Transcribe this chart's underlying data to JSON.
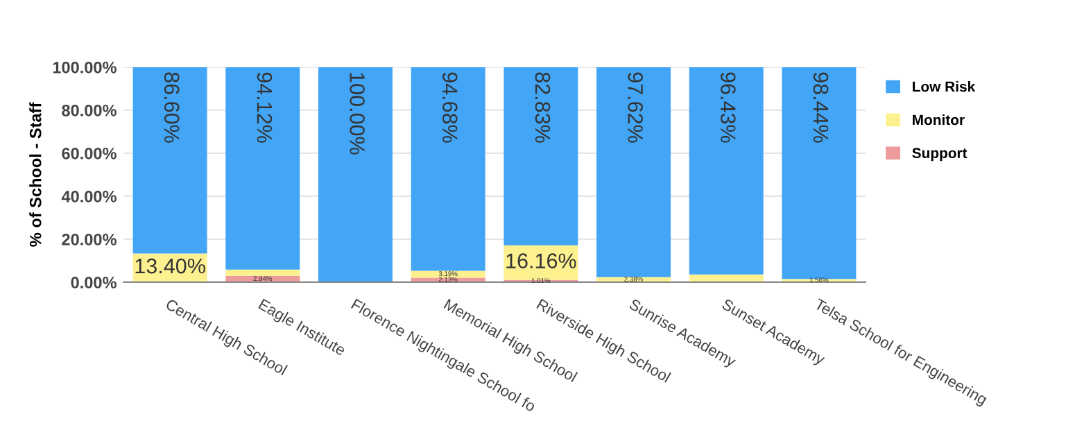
{
  "chart_data": {
    "type": "bar",
    "stacked": true,
    "ylabel": "% of School - Staff",
    "categories": [
      "Central High School",
      "Eagle Institute",
      "Florence Nightingale School fo",
      "Memorial High School",
      "Riverside High School",
      "Sunrise Academy",
      "Sunset Academy",
      "Telsa School for Engineering"
    ],
    "series": [
      {
        "name": "Support",
        "color": "#ec9a9a",
        "values": [
          0,
          2.94,
          0,
          2.13,
          1.01,
          0,
          0,
          0
        ],
        "value_labels": [
          null,
          "2.94%",
          null,
          "2.13%",
          "1.01%",
          null,
          null,
          null
        ]
      },
      {
        "name": "Monitor",
        "color": "#fdf08f",
        "values": [
          13.4,
          2.9,
          0,
          3.19,
          16.16,
          2.38,
          3.6,
          1.56
        ],
        "value_labels": [
          "13.40%",
          null,
          null,
          "3.19%",
          "16.16%",
          "2.38%",
          null,
          "1.56%"
        ]
      },
      {
        "name": "Low Risk",
        "color": "#42a5f5",
        "values": [
          86.6,
          94.12,
          100.0,
          94.68,
          82.83,
          97.62,
          96.43,
          98.44
        ],
        "value_labels": [
          "86.60%",
          "94.12%",
          "100.00%",
          "94.68%",
          "82.83%",
          "97.62%",
          "96.43%",
          "98.44%"
        ]
      }
    ],
    "ylim": [
      0,
      100
    ],
    "yticks": [
      {
        "value": 0,
        "label": "0.00%"
      },
      {
        "value": 20,
        "label": "20.00%"
      },
      {
        "value": 40,
        "label": "40.00%"
      },
      {
        "value": 60,
        "label": "60.00%"
      },
      {
        "value": 80,
        "label": "80.00%"
      },
      {
        "value": 100,
        "label": "100.00%"
      }
    ],
    "grid": "y",
    "legend": "top right"
  }
}
